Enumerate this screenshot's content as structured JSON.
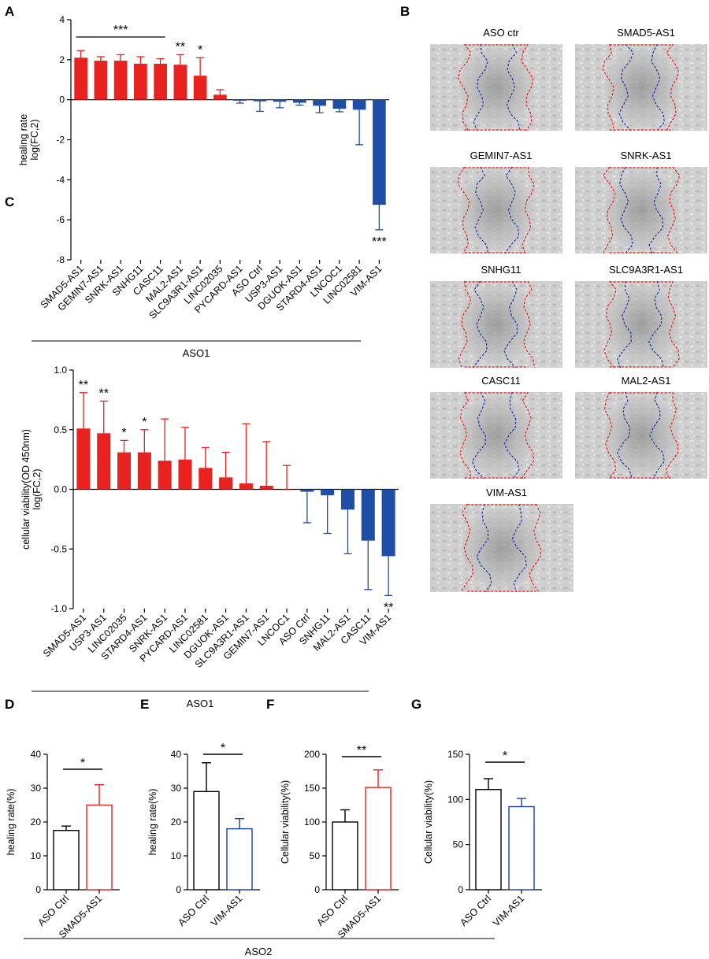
{
  "colors": {
    "up": "#e8221e",
    "down": "#1f4ea6",
    "axis": "#000000",
    "ctrl": "#000000",
    "red": "#e8221e",
    "blue": "#1f3f9f"
  },
  "chart_data": [
    {
      "panel": "A",
      "type": "bar",
      "ylabel_lines": [
        "healing rate",
        "log(FC,2)"
      ],
      "ylim": [
        -8,
        4
      ],
      "yticks": [
        4,
        2,
        0,
        -2,
        -4,
        -6,
        -8
      ],
      "categories": [
        "SMAD5-AS1",
        "GEMIN7-AS1",
        "SNRK-AS1",
        "SNHG11",
        "CASC11",
        "MAL2-AS1",
        "SLC9A3R1-AS1",
        "LINC02035",
        "PYCARD-AS1",
        "ASO Ctrl",
        "USP3-AS1",
        "DGUOK-AS1",
        "STARD4-AS1",
        "LNCOC1",
        "LINC02581",
        "VIM-AS1"
      ],
      "values": [
        2.1,
        1.95,
        1.95,
        1.8,
        1.8,
        1.75,
        1.2,
        0.25,
        -0.05,
        -0.08,
        -0.1,
        -0.15,
        -0.3,
        -0.45,
        -0.5,
        -5.25
      ],
      "errors": [
        0.35,
        0.2,
        0.3,
        0.35,
        0.25,
        0.5,
        0.9,
        0.25,
        0.12,
        0.5,
        0.3,
        0.12,
        0.35,
        0.15,
        1.75,
        1.25
      ],
      "significance": [
        {
          "text": "***",
          "span": [
            0,
            4
          ],
          "line": true
        },
        {
          "text": "**",
          "index": 5
        },
        {
          "text": "*",
          "index": 6
        },
        {
          "text": "***",
          "index": 15
        }
      ],
      "group_label": "ASO1"
    },
    {
      "panel": "C",
      "type": "bar",
      "ylabel_lines": [
        "cellular viability(OD 450nm)",
        "log(FC,2)"
      ],
      "ylim": [
        -1.0,
        1.0
      ],
      "yticks": [
        1.0,
        0.5,
        0.0,
        -0.5,
        -1.0
      ],
      "ytick_labels": [
        "1.0",
        "0.5",
        "0.0",
        "-0.5",
        "-1.0"
      ],
      "categories": [
        "SMAD5-AS1",
        "USP3-AS1",
        "LINC02035",
        "STARD4-AS1",
        "SNRK-AS1",
        "PYCARD-AS1",
        "LINC02581",
        "DGUOK-AS1",
        "SLC9A3R1-AS1",
        "GEMIN7-AS1",
        "LNCOC1",
        "ASO Ctrl",
        "SNHG11",
        "MAL2-AS1",
        "CASC11",
        "VIM-AS1"
      ],
      "values": [
        0.51,
        0.47,
        0.31,
        0.31,
        0.24,
        0.25,
        0.18,
        0.1,
        0.05,
        0.03,
        0.0,
        -0.02,
        -0.05,
        -0.17,
        -0.43,
        -0.56
      ],
      "errors": [
        0.3,
        0.27,
        0.1,
        0.19,
        0.35,
        0.27,
        0.17,
        0.21,
        0.5,
        0.37,
        0.2,
        0.26,
        0.32,
        0.37,
        0.41,
        0.33
      ],
      "significance": [
        {
          "text": "**",
          "index": 0
        },
        {
          "text": "**",
          "index": 1
        },
        {
          "text": "*",
          "index": 2
        },
        {
          "text": "*",
          "index": 3
        },
        {
          "text": "**",
          "index": 15
        }
      ],
      "group_label": "ASO1"
    },
    {
      "panel": "D",
      "type": "bar",
      "ylabel": "healing rate(%)",
      "ylim": [
        0,
        40
      ],
      "yticks": [
        0,
        10,
        20,
        30,
        40
      ],
      "categories": [
        "ASO Ctrl",
        "SMAD5-AS1"
      ],
      "values": [
        17.5,
        25
      ],
      "errors": [
        1.3,
        6
      ],
      "significance": "*"
    },
    {
      "panel": "E",
      "type": "bar",
      "ylabel": "healing rate(%)",
      "ylim": [
        0,
        40
      ],
      "yticks": [
        0,
        10,
        20,
        30,
        40
      ],
      "categories": [
        "ASO Ctrl",
        "VIM-AS1"
      ],
      "values": [
        29,
        18
      ],
      "errors": [
        8.5,
        3
      ],
      "significance": "*"
    },
    {
      "panel": "F",
      "type": "bar",
      "ylabel": "Cellular viability(%)",
      "ylim": [
        0,
        200
      ],
      "yticks": [
        0,
        50,
        100,
        150,
        200
      ],
      "categories": [
        "ASO Ctrl",
        "SMAD5-AS1"
      ],
      "values": [
        100,
        151
      ],
      "errors": [
        18,
        26
      ],
      "significance": "**"
    },
    {
      "panel": "G",
      "type": "bar",
      "ylabel": "Cellular viability(%)",
      "ylim": [
        0,
        150
      ],
      "yticks": [
        0,
        50,
        100,
        150
      ],
      "categories": [
        "ASO Ctrl",
        "VIM-AS1"
      ],
      "values": [
        111,
        92
      ],
      "errors": [
        12,
        9
      ],
      "significance": "*"
    }
  ],
  "panel_b": {
    "label": "B",
    "images": [
      "ASO ctr",
      "SMAD5-AS1",
      "GEMIN7-AS1",
      "SNRK-AS1",
      "SNHG11",
      "SLC9A3R1-AS1",
      "CASC11",
      "MAL2-AS1",
      "VIM-AS1"
    ]
  },
  "bottom_group_label": "ASO2",
  "panel_labels": {
    "a": "A",
    "c": "C",
    "d": "D",
    "e": "E",
    "f": "F",
    "g": "G"
  }
}
